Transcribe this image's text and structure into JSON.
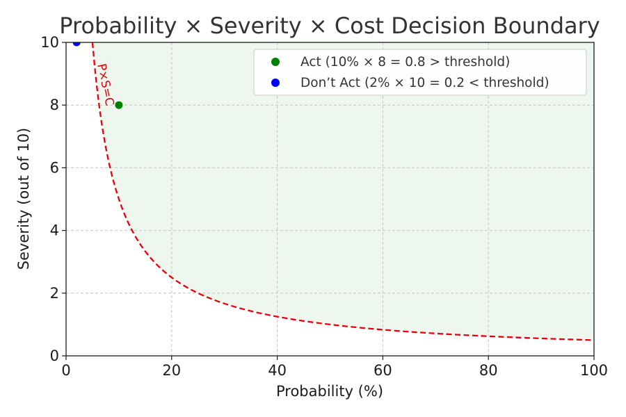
{
  "chart_data": {
    "type": "line",
    "title": "Probability × Severity × Cost Decision Boundary",
    "xlabel": "Probability (%)",
    "ylabel": "Severity (out of 10)",
    "xlim": [
      0,
      100
    ],
    "ylim": [
      0,
      10
    ],
    "x_ticks": [
      "0",
      "20",
      "40",
      "60",
      "80",
      "100"
    ],
    "y_ticks": [
      "0",
      "2",
      "4",
      "6",
      "8",
      "10"
    ],
    "grid": true,
    "legend_position": "top-right",
    "boundary": {
      "label": "P×S=C",
      "product_constant": 50,
      "color": "#e8000b",
      "style": "dashed",
      "act_region_color": "#eef7ee"
    },
    "series": [
      {
        "name": "Act (10% × 8 = 0.8 > threshold)",
        "color": "#008000",
        "x": [
          10
        ],
        "y": [
          8
        ]
      },
      {
        "name": "Don’t Act (2% × 10 = 0.2 < threshold)",
        "color": "#0000ff",
        "x": [
          2
        ],
        "y": [
          10
        ]
      }
    ]
  }
}
